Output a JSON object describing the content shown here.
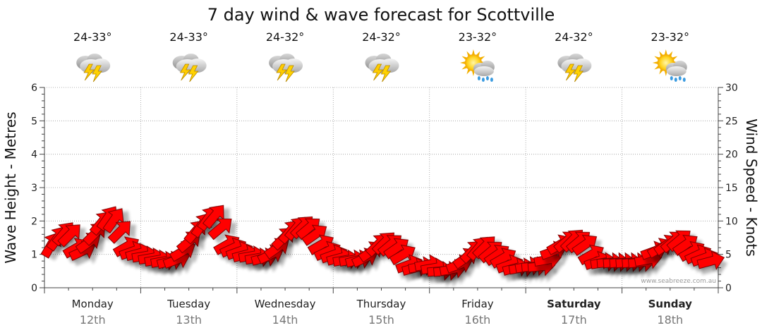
{
  "chart_data": {
    "type": "line",
    "title": "7 day wind & wave forecast for Scottville",
    "left_axis_label": "Wave Height - Metres",
    "right_axis_label": "Wind Speed - Knots",
    "left_ylim": [
      0,
      6
    ],
    "left_ticks": [
      "0",
      "1",
      "2",
      "3",
      "4",
      "5",
      "6"
    ],
    "right_ylim": [
      0,
      30
    ],
    "right_ticks": [
      "0",
      "5",
      "10",
      "15",
      "20",
      "25",
      "30"
    ],
    "credit": "www.seabreeze.com.au",
    "days": [
      {
        "name": "Monday",
        "date": "12th",
        "temp": "24-33°",
        "icon": "storm-cloud-icon",
        "bold": false
      },
      {
        "name": "Tuesday",
        "date": "13th",
        "temp": "24-33°",
        "icon": "storm-cloud-icon",
        "bold": false
      },
      {
        "name": "Wednesday",
        "date": "14th",
        "temp": "24-32°",
        "icon": "storm-cloud-icon",
        "bold": false
      },
      {
        "name": "Thursday",
        "date": "15th",
        "temp": "24-32°",
        "icon": "storm-cloud-icon",
        "bold": false
      },
      {
        "name": "Friday",
        "date": "16th",
        "temp": "23-32°",
        "icon": "sun-rain-cloud-icon",
        "bold": false
      },
      {
        "name": "Saturday",
        "date": "17th",
        "temp": "24-32°",
        "icon": "storm-cloud-icon",
        "bold": true
      },
      {
        "name": "Sunday",
        "date": "18th",
        "temp": "23-32°",
        "icon": "sun-rain-cloud-icon",
        "bold": true
      }
    ],
    "wind_speed_series": {
      "units": "knots",
      "x_day_fraction_start": 0.0,
      "values": [
        6.5,
        7.5,
        8.2,
        8.0,
        6.0,
        5.5,
        6.8,
        8.2,
        9.8,
        10.5,
        10.2,
        8.5,
        6.2,
        5.5,
        5.2,
        4.8,
        4.5,
        4.2,
        4.0,
        4.0,
        4.2,
        5.5,
        7.0,
        8.5,
        9.5,
        10.5,
        10.8,
        9.0,
        6.5,
        6.0,
        5.5,
        5.0,
        4.8,
        4.5,
        4.5,
        5.0,
        6.0,
        7.5,
        8.5,
        9.0,
        9.2,
        9.0,
        8.0,
        6.5,
        5.5,
        5.0,
        4.5,
        4.2,
        4.2,
        4.2,
        4.5,
        5.5,
        6.5,
        6.8,
        6.5,
        6.0,
        5.0,
        3.5,
        3.0,
        3.2,
        3.5,
        3.0,
        2.5,
        2.5,
        2.8,
        3.5,
        4.5,
        5.5,
        6.0,
        6.2,
        5.5,
        5.0,
        4.5,
        3.5,
        3.0,
        3.0,
        3.2,
        3.2,
        3.2,
        4.2,
        5.5,
        6.5,
        7.0,
        7.2,
        7.0,
        6.5,
        5.0,
        4.0,
        3.8,
        3.8,
        3.8,
        3.8,
        3.8,
        3.8,
        3.8,
        4.2,
        5.5,
        6.0,
        6.5,
        7.0,
        7.2,
        6.5,
        5.5,
        5.0,
        4.5,
        4.0
      ],
      "directions_deg": [
        60,
        55,
        50,
        45,
        30,
        25,
        35,
        45,
        50,
        55,
        55,
        45,
        30,
        20,
        15,
        10,
        10,
        10,
        10,
        15,
        20,
        30,
        40,
        50,
        55,
        55,
        50,
        40,
        30,
        25,
        20,
        15,
        10,
        10,
        15,
        25,
        35,
        45,
        50,
        50,
        45,
        40,
        35,
        30,
        25,
        20,
        15,
        10,
        10,
        15,
        25,
        35,
        45,
        45,
        40,
        35,
        30,
        20,
        15,
        10,
        10,
        10,
        5,
        5,
        10,
        20,
        35,
        45,
        50,
        45,
        40,
        35,
        30,
        20,
        15,
        10,
        10,
        5,
        5,
        10,
        20,
        30,
        40,
        45,
        40,
        35,
        30,
        20,
        10,
        5,
        5,
        5,
        5,
        5,
        5,
        10,
        20,
        30,
        35,
        40,
        40,
        35,
        30,
        25,
        20,
        15
      ]
    }
  }
}
